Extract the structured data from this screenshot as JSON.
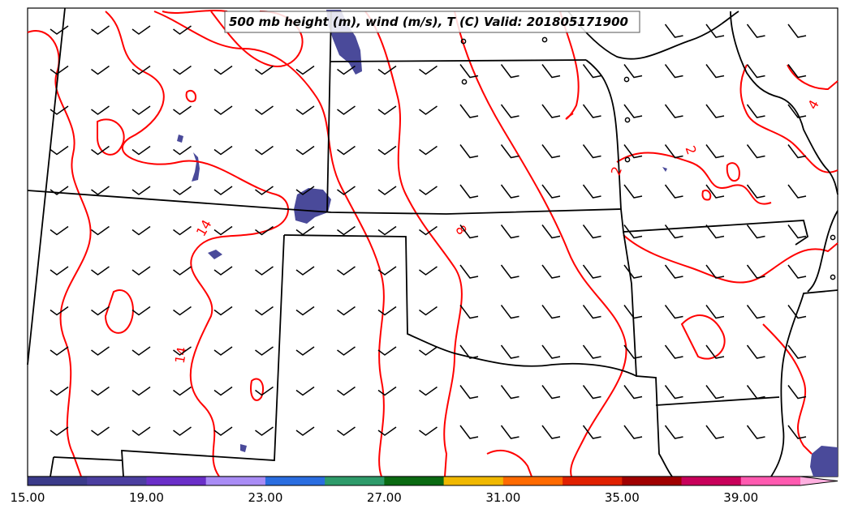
{
  "title": "500 mb height (m), wind (m/s), T (C) Valid: 201805171900",
  "colors": {
    "contour": "#ff0000",
    "border": "#000000",
    "wind": "#000000",
    "fill_low": "#4a4a9a"
  },
  "contour_labels": [
    "14",
    "14",
    "8",
    "2",
    "2",
    "4"
  ],
  "colorbar": {
    "min": 15.0,
    "max": 41.0,
    "extend": "max",
    "tick_labels": [
      "15.00",
      "19.00",
      "23.00",
      "27.00",
      "31.00",
      "35.00",
      "39.00"
    ],
    "colors": [
      "#3b3b8a",
      "#4b3fa0",
      "#6a2fc8",
      "#a98cf5",
      "#2a6de0",
      "#2e9b6a",
      "#0a6a12",
      "#f0b800",
      "#ff6a00",
      "#e02000",
      "#a00000",
      "#c8005a",
      "#ff5ab0",
      "#ffb0e0"
    ]
  },
  "wind_barb_icon": "wind-barb-icon"
}
